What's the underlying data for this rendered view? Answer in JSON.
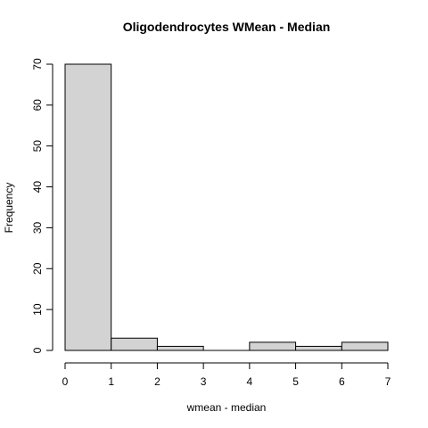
{
  "chart_data": {
    "type": "bar",
    "subtype": "histogram",
    "title": "Oligodendrocytes WMean - Median",
    "xlabel": "wmean - median",
    "ylabel": "Frequency",
    "bins": [
      {
        "x0": 0,
        "x1": 1,
        "count": 70
      },
      {
        "x0": 1,
        "x1": 2,
        "count": 3
      },
      {
        "x0": 2,
        "x1": 3,
        "count": 1
      },
      {
        "x0": 3,
        "x1": 4,
        "count": 0
      },
      {
        "x0": 4,
        "x1": 5,
        "count": 2
      },
      {
        "x0": 5,
        "x1": 6,
        "count": 1
      },
      {
        "x0": 6,
        "x1": 7,
        "count": 2
      }
    ],
    "xlim": [
      0,
      7
    ],
    "ylim": [
      0,
      70
    ],
    "x_ticks": [
      "0",
      "1",
      "2",
      "3",
      "4",
      "5",
      "6",
      "7"
    ],
    "y_ticks": [
      "0",
      "10",
      "20",
      "30",
      "40",
      "50",
      "60",
      "70"
    ],
    "grid": false,
    "legend": "none",
    "bar_fill": "#d3d3d3",
    "bar_stroke": "#000000"
  }
}
